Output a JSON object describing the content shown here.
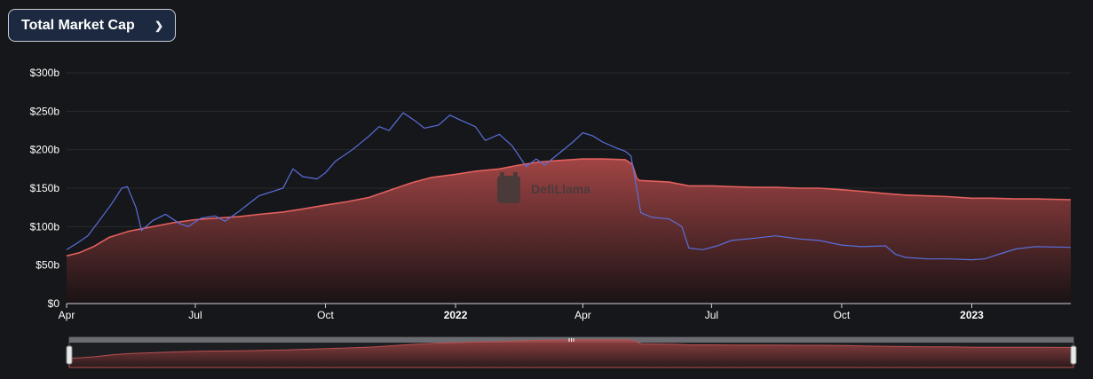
{
  "selector": {
    "label": "Total Market Cap",
    "icon": "chevron-down-icon"
  },
  "watermark": "DefiLlama",
  "colors": {
    "background": "#16171a",
    "area_line": "#e3605f",
    "area_fill_top": "#a94747",
    "line_series": "#5a6fdb",
    "grid": "#2a2b30"
  },
  "chart_data": {
    "type": "area",
    "ylim": [
      0,
      300
    ],
    "yticks": [
      "$0",
      "$50b",
      "$100b",
      "$150b",
      "$200b",
      "$250b",
      "$300b"
    ],
    "xlim": [
      "2021-04-01",
      "2023-03-12"
    ],
    "xticks": [
      {
        "label": "Apr",
        "date": "2021-04-01",
        "bold": false
      },
      {
        "label": "Jul",
        "date": "2021-07-01",
        "bold": false
      },
      {
        "label": "Oct",
        "date": "2021-10-01",
        "bold": false
      },
      {
        "label": "2022",
        "date": "2022-01-01",
        "bold": true
      },
      {
        "label": "Apr",
        "date": "2022-04-01",
        "bold": false
      },
      {
        "label": "Jul",
        "date": "2022-07-01",
        "bold": false
      },
      {
        "label": "Oct",
        "date": "2022-10-01",
        "bold": false
      },
      {
        "label": "2023",
        "date": "2023-01-01",
        "bold": true
      }
    ],
    "grid": true,
    "legend": "none",
    "series": [
      {
        "kind": "area",
        "points": [
          [
            "2021-04-01",
            62
          ],
          [
            "2021-04-10",
            66
          ],
          [
            "2021-04-20",
            74
          ],
          [
            "2021-05-01",
            86
          ],
          [
            "2021-05-15",
            94
          ],
          [
            "2021-06-01",
            100
          ],
          [
            "2021-06-15",
            105
          ],
          [
            "2021-07-01",
            109
          ],
          [
            "2021-07-15",
            111
          ],
          [
            "2021-08-01",
            113
          ],
          [
            "2021-08-15",
            116
          ],
          [
            "2021-09-01",
            119
          ],
          [
            "2021-09-15",
            123
          ],
          [
            "2021-10-01",
            128
          ],
          [
            "2021-10-15",
            132
          ],
          [
            "2021-11-01",
            138
          ],
          [
            "2021-11-15",
            147
          ],
          [
            "2021-12-01",
            157
          ],
          [
            "2021-12-15",
            164
          ],
          [
            "2022-01-01",
            168
          ],
          [
            "2022-01-15",
            172
          ],
          [
            "2022-02-01",
            175
          ],
          [
            "2022-02-15",
            180
          ],
          [
            "2022-03-01",
            184
          ],
          [
            "2022-03-15",
            186
          ],
          [
            "2022-04-01",
            188
          ],
          [
            "2022-04-15",
            188
          ],
          [
            "2022-05-01",
            187
          ],
          [
            "2022-05-06",
            181
          ],
          [
            "2022-05-09",
            163
          ],
          [
            "2022-05-11",
            160
          ],
          [
            "2022-06-01",
            158
          ],
          [
            "2022-06-15",
            153
          ],
          [
            "2022-07-01",
            153
          ],
          [
            "2022-07-15",
            152
          ],
          [
            "2022-08-01",
            151
          ],
          [
            "2022-08-15",
            151
          ],
          [
            "2022-09-01",
            150
          ],
          [
            "2022-09-15",
            150
          ],
          [
            "2022-10-01",
            148
          ],
          [
            "2022-10-15",
            146
          ],
          [
            "2022-11-01",
            143
          ],
          [
            "2022-11-15",
            141
          ],
          [
            "2022-12-01",
            140
          ],
          [
            "2022-12-15",
            139
          ],
          [
            "2023-01-01",
            137
          ],
          [
            "2023-01-15",
            137
          ],
          [
            "2023-02-01",
            136
          ],
          [
            "2023-02-15",
            136
          ],
          [
            "2023-03-12",
            135
          ]
        ]
      },
      {
        "kind": "line",
        "points": [
          [
            "2021-04-01",
            70
          ],
          [
            "2021-04-08",
            78
          ],
          [
            "2021-04-16",
            88
          ],
          [
            "2021-04-25",
            110
          ],
          [
            "2021-05-03",
            130
          ],
          [
            "2021-05-10",
            150
          ],
          [
            "2021-05-14",
            152
          ],
          [
            "2021-05-20",
            125
          ],
          [
            "2021-05-24",
            95
          ],
          [
            "2021-06-01",
            108
          ],
          [
            "2021-06-10",
            116
          ],
          [
            "2021-06-20",
            104
          ],
          [
            "2021-06-26",
            100
          ],
          [
            "2021-07-05",
            111
          ],
          [
            "2021-07-15",
            114
          ],
          [
            "2021-07-22",
            107
          ],
          [
            "2021-08-01",
            120
          ],
          [
            "2021-08-15",
            140
          ],
          [
            "2021-09-01",
            150
          ],
          [
            "2021-09-08",
            175
          ],
          [
            "2021-09-15",
            165
          ],
          [
            "2021-09-25",
            162
          ],
          [
            "2021-10-01",
            170
          ],
          [
            "2021-10-08",
            185
          ],
          [
            "2021-10-20",
            200
          ],
          [
            "2021-11-01",
            218
          ],
          [
            "2021-11-08",
            230
          ],
          [
            "2021-11-15",
            225
          ],
          [
            "2021-11-25",
            248
          ],
          [
            "2021-12-03",
            238
          ],
          [
            "2021-12-10",
            228
          ],
          [
            "2021-12-20",
            232
          ],
          [
            "2021-12-28",
            245
          ],
          [
            "2022-01-05",
            238
          ],
          [
            "2022-01-15",
            230
          ],
          [
            "2022-01-22",
            212
          ],
          [
            "2022-02-01",
            220
          ],
          [
            "2022-02-10",
            205
          ],
          [
            "2022-02-20",
            178
          ],
          [
            "2022-02-27",
            188
          ],
          [
            "2022-03-05",
            180
          ],
          [
            "2022-03-15",
            195
          ],
          [
            "2022-03-25",
            210
          ],
          [
            "2022-04-01",
            222
          ],
          [
            "2022-04-08",
            218
          ],
          [
            "2022-04-15",
            210
          ],
          [
            "2022-04-25",
            202
          ],
          [
            "2022-05-01",
            198
          ],
          [
            "2022-05-05",
            192
          ],
          [
            "2022-05-09",
            150
          ],
          [
            "2022-05-12",
            118
          ],
          [
            "2022-05-20",
            112
          ],
          [
            "2022-06-01",
            110
          ],
          [
            "2022-06-10",
            100
          ],
          [
            "2022-06-15",
            72
          ],
          [
            "2022-06-25",
            70
          ],
          [
            "2022-07-05",
            75
          ],
          [
            "2022-07-15",
            82
          ],
          [
            "2022-08-01",
            85
          ],
          [
            "2022-08-15",
            88
          ],
          [
            "2022-09-01",
            84
          ],
          [
            "2022-09-15",
            82
          ],
          [
            "2022-10-01",
            76
          ],
          [
            "2022-10-15",
            74
          ],
          [
            "2022-11-01",
            75
          ],
          [
            "2022-11-08",
            64
          ],
          [
            "2022-11-15",
            60
          ],
          [
            "2022-12-01",
            58
          ],
          [
            "2022-12-15",
            58
          ],
          [
            "2023-01-01",
            57
          ],
          [
            "2023-01-10",
            58
          ],
          [
            "2023-01-20",
            64
          ],
          [
            "2023-02-01",
            71
          ],
          [
            "2023-02-15",
            74
          ],
          [
            "2023-03-12",
            73
          ]
        ]
      }
    ]
  }
}
